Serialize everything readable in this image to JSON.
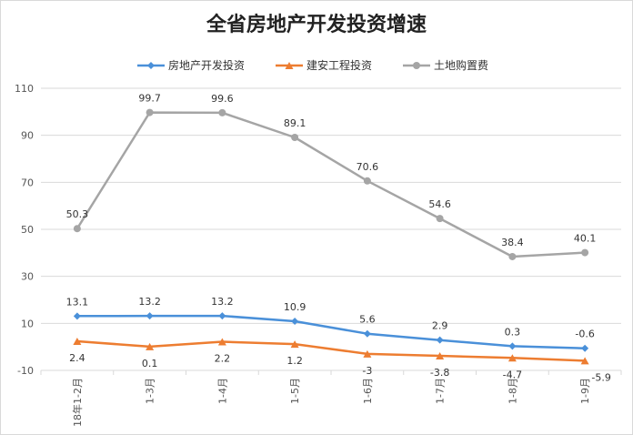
{
  "chart_data": {
    "type": "line",
    "title": "全省房地产开发投资增速",
    "categories": [
      "18年1-2月",
      "1-3月",
      "1-4月",
      "1-5月",
      "1-6月",
      "1-7月",
      "1-8月",
      "1-9月"
    ],
    "series": [
      {
        "name": "房地产开发投资",
        "color": "#4a90d9",
        "marker": "diamond",
        "values": [
          13.1,
          13.2,
          13.2,
          10.9,
          5.6,
          2.9,
          0.3,
          -0.6
        ],
        "labels": [
          "13.1",
          "13.2",
          "13.2",
          "10.9",
          "5.6",
          "2.9",
          "0.3",
          "-0.6"
        ]
      },
      {
        "name": "建安工程投资",
        "color": "#ed7d31",
        "marker": "triangle",
        "values": [
          2.4,
          0.1,
          2.2,
          1.2,
          -3,
          -3.8,
          -4.7,
          -5.9
        ],
        "labels": [
          "2.4",
          "0.1",
          "2.2",
          "1.2",
          "-3",
          "-3.8",
          "-4.7",
          "-5.9"
        ]
      },
      {
        "name": "土地购置费",
        "color": "#a5a5a5",
        "marker": "circle",
        "values": [
          50.3,
          99.7,
          99.6,
          89.1,
          70.6,
          54.6,
          38.4,
          40.1
        ],
        "labels": [
          "50.3",
          "99.7",
          "99.6",
          "89.1",
          "70.6",
          "54.6",
          "38.4",
          "40.1"
        ]
      }
    ],
    "yticks": [
      "110",
      "90",
      "70",
      "50",
      "30",
      "10",
      "-10"
    ],
    "ylim": [
      -10,
      110
    ],
    "grid": true,
    "legend_position": "top"
  }
}
